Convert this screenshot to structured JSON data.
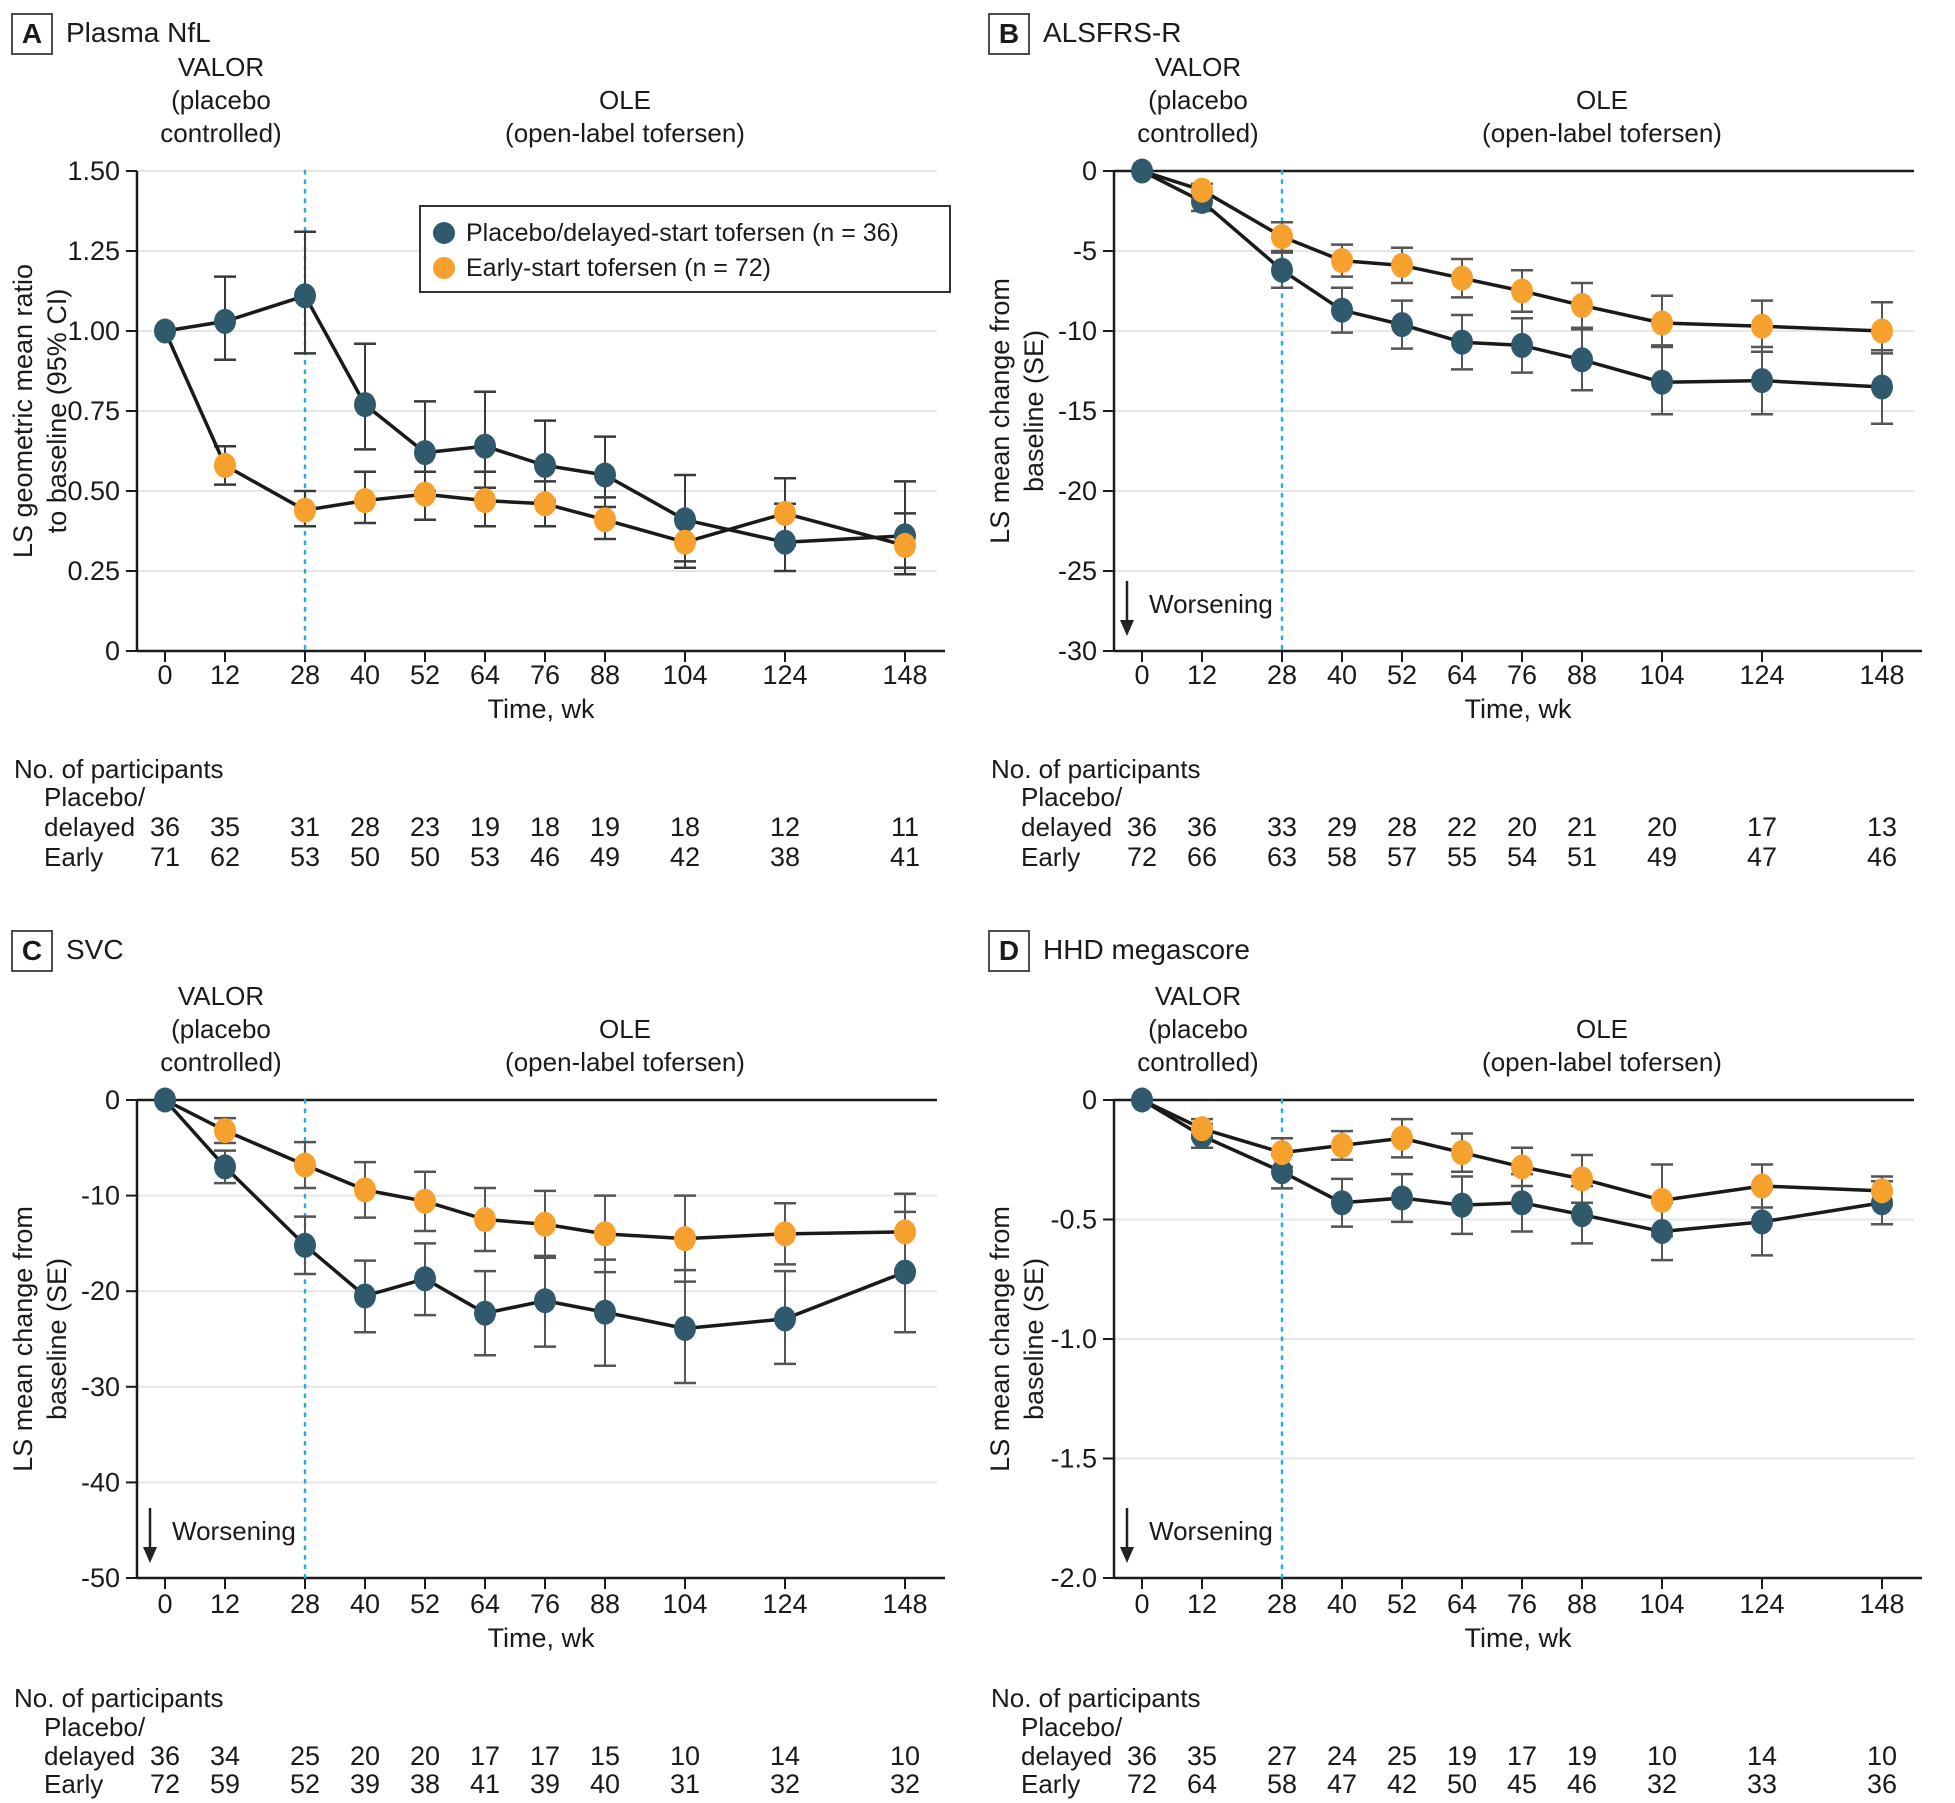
{
  "colors": {
    "placebo_delayed": "#30596b",
    "early": "#f6a12e",
    "phase_text": "#1ba7e2",
    "divider_line": "#29abe2",
    "axis": "#1a1a1a",
    "gridline": "#e6e6e6",
    "error_bar_ci": "#3a3a3a",
    "error_bar_se": "#555555",
    "text": "#1a1a1a"
  },
  "legend": {
    "series1_label": "Placebo/delayed-start tofersen (n = 36)",
    "series2_label": "Early-start tofersen (n = 72)"
  },
  "shared": {
    "x_axis_label": "Time, wk",
    "x_weeks": [
      0,
      12,
      28,
      40,
      52,
      64,
      76,
      88,
      104,
      124,
      148
    ],
    "divider_week": 28,
    "phase_valor_line1": "VALOR",
    "phase_valor_line2": "(placebo",
    "phase_valor_line3": "controlled)",
    "phase_ole_line1": "OLE",
    "phase_ole_line2": "(open-label tofersen)",
    "worsening_label": "Worsening",
    "participants_heading": "No. of participants",
    "participants_row1_line1": "Placebo/",
    "participants_row1_line2": "delayed",
    "participants_row2": "Early"
  },
  "chart_data": [
    {
      "type": "line",
      "panel_letter": "A",
      "title": "Plasma NfL",
      "y_label_lines": [
        "LS geometric mean ratio",
        "to baseline (95% CI)"
      ],
      "y_tick_values": [
        1.5,
        1.25,
        1.0,
        0.75,
        0.5,
        0.25,
        0
      ],
      "y_tick_labels": [
        "1.50",
        "1.25",
        "1.00",
        "0.75",
        "0.50",
        "0.25",
        "0"
      ],
      "ylim": [
        0,
        1.5
      ],
      "x_weeks": [
        0,
        12,
        28,
        40,
        52,
        64,
        76,
        88,
        104,
        124,
        148
      ],
      "series": [
        {
          "key": "placebo_delayed",
          "values": [
            1.0,
            1.03,
            1.11,
            0.77,
            0.62,
            0.64,
            0.58,
            0.55,
            0.41,
            0.34,
            0.36
          ],
          "err_low": [
            1.0,
            0.91,
            0.93,
            0.63,
            0.5,
            0.51,
            0.47,
            0.45,
            0.28,
            0.25,
            0.26
          ],
          "err_high": [
            1.0,
            1.17,
            1.31,
            0.96,
            0.78,
            0.81,
            0.72,
            0.67,
            0.55,
            0.46,
            0.53
          ]
        },
        {
          "key": "early",
          "values": [
            1.0,
            0.58,
            0.44,
            0.47,
            0.49,
            0.47,
            0.46,
            0.41,
            0.34,
            0.43,
            0.33
          ],
          "err_low": [
            1.0,
            0.52,
            0.39,
            0.4,
            0.41,
            0.39,
            0.39,
            0.35,
            0.26,
            0.33,
            0.24
          ],
          "err_high": [
            1.0,
            0.64,
            0.5,
            0.56,
            0.56,
            0.56,
            0.53,
            0.48,
            0.41,
            0.54,
            0.43
          ]
        }
      ],
      "participants": {
        "placebo_delayed": [
          36,
          35,
          31,
          28,
          23,
          19,
          18,
          19,
          18,
          12,
          11
        ],
        "early": [
          71,
          62,
          53,
          50,
          50,
          53,
          46,
          49,
          42,
          38,
          41
        ]
      },
      "show_legend": true,
      "show_worsening": false
    },
    {
      "type": "line",
      "panel_letter": "B",
      "title": "ALSFRS-R",
      "y_label_lines": [
        "LS mean change from",
        "baseline (SE)"
      ],
      "y_tick_values": [
        0,
        -5,
        -10,
        -15,
        -20,
        -25,
        -30
      ],
      "y_tick_labels": [
        "0",
        "-5",
        "-10",
        "-15",
        "-20",
        "-25",
        "-30"
      ],
      "ylim": [
        -30,
        0
      ],
      "x_weeks": [
        0,
        12,
        28,
        40,
        52,
        64,
        76,
        88,
        104,
        124,
        148
      ],
      "series": [
        {
          "key": "placebo_delayed",
          "values": [
            0,
            -1.9,
            -6.2,
            -8.7,
            -9.6,
            -10.7,
            -10.9,
            -11.8,
            -13.2,
            -13.1,
            -13.5
          ],
          "err_low": [
            0,
            -2.5,
            -7.3,
            -10.1,
            -11.1,
            -12.4,
            -12.6,
            -13.7,
            -15.2,
            -15.2,
            -15.8
          ],
          "err_high": [
            0,
            -1.3,
            -5.1,
            -7.3,
            -8.1,
            -9.0,
            -9.2,
            -9.9,
            -10.9,
            -11.0,
            -11.2
          ]
        },
        {
          "key": "early",
          "values": [
            0,
            -1.2,
            -4.1,
            -5.6,
            -5.9,
            -6.7,
            -7.5,
            -8.4,
            -9.5,
            -9.7,
            -10.0
          ],
          "err_low": [
            0,
            -1.6,
            -5.0,
            -6.6,
            -7.0,
            -7.9,
            -8.8,
            -9.8,
            -11.0,
            -11.3,
            -11.4
          ],
          "err_high": [
            0,
            -0.8,
            -3.2,
            -4.6,
            -4.8,
            -5.5,
            -6.2,
            -7.0,
            -7.8,
            -8.1,
            -8.2
          ]
        }
      ],
      "participants": {
        "placebo_delayed": [
          36,
          36,
          33,
          29,
          28,
          22,
          20,
          21,
          20,
          17,
          13
        ],
        "early": [
          72,
          66,
          63,
          58,
          57,
          55,
          54,
          51,
          49,
          47,
          46
        ]
      },
      "show_legend": false,
      "show_worsening": true
    },
    {
      "type": "line",
      "panel_letter": "C",
      "title": "SVC",
      "y_label_lines": [
        "LS mean change from",
        "baseline (SE)"
      ],
      "y_tick_values": [
        0,
        -10,
        -20,
        -30,
        -40,
        -50
      ],
      "y_tick_labels": [
        "0",
        "-10",
        "-20",
        "-30",
        "-40",
        "-50"
      ],
      "ylim": [
        -50,
        0
      ],
      "x_weeks": [
        0,
        12,
        28,
        40,
        52,
        64,
        76,
        88,
        104,
        124,
        148
      ],
      "series": [
        {
          "key": "placebo_delayed",
          "values": [
            0,
            -7.0,
            -15.2,
            -20.5,
            -18.7,
            -22.3,
            -21.0,
            -22.2,
            -23.9,
            -22.9,
            -18.0
          ],
          "err_low": [
            0,
            -8.7,
            -18.2,
            -24.3,
            -22.5,
            -26.7,
            -25.8,
            -27.8,
            -29.6,
            -27.6,
            -24.3
          ],
          "err_high": [
            0,
            -5.3,
            -12.2,
            -16.8,
            -15.0,
            -17.9,
            -16.3,
            -16.7,
            -17.8,
            -17.9,
            -11.7
          ]
        },
        {
          "key": "early",
          "values": [
            0,
            -3.2,
            -6.8,
            -9.4,
            -10.6,
            -12.5,
            -13.0,
            -14.0,
            -14.5,
            -14.0,
            -13.8
          ],
          "err_low": [
            0,
            -4.5,
            -9.2,
            -12.3,
            -13.7,
            -15.8,
            -16.5,
            -18.0,
            -19.0,
            -17.2,
            -17.8
          ],
          "err_high": [
            0,
            -1.9,
            -4.4,
            -6.5,
            -7.5,
            -9.2,
            -9.5,
            -10.0,
            -10.0,
            -10.8,
            -9.8
          ]
        }
      ],
      "participants": {
        "placebo_delayed": [
          36,
          34,
          25,
          20,
          20,
          17,
          17,
          15,
          10,
          14,
          10
        ],
        "early": [
          72,
          59,
          52,
          39,
          38,
          41,
          39,
          40,
          31,
          32,
          32
        ]
      },
      "show_legend": false,
      "show_worsening": true
    },
    {
      "type": "line",
      "panel_letter": "D",
      "title": "HHD megascore",
      "y_label_lines": [
        "LS mean change from",
        "baseline (SE)"
      ],
      "y_tick_values": [
        0,
        -0.5,
        -1.0,
        -1.5,
        -2.0
      ],
      "y_tick_labels": [
        "0",
        "-0.5",
        "-1.0",
        "-1.5",
        "-2.0"
      ],
      "ylim": [
        -2.0,
        0
      ],
      "x_weeks": [
        0,
        12,
        28,
        40,
        52,
        64,
        76,
        88,
        104,
        124,
        148
      ],
      "series": [
        {
          "key": "placebo_delayed",
          "values": [
            0,
            -0.15,
            -0.3,
            -0.43,
            -0.41,
            -0.44,
            -0.43,
            -0.48,
            -0.55,
            -0.51,
            -0.43
          ],
          "err_low": [
            0,
            -0.2,
            -0.37,
            -0.53,
            -0.51,
            -0.56,
            -0.55,
            -0.6,
            -0.67,
            -0.65,
            -0.52
          ],
          "err_high": [
            0,
            -0.1,
            -0.23,
            -0.33,
            -0.31,
            -0.32,
            -0.31,
            -0.36,
            -0.43,
            -0.37,
            -0.34
          ]
        },
        {
          "key": "early",
          "values": [
            0,
            -0.12,
            -0.22,
            -0.19,
            -0.16,
            -0.22,
            -0.28,
            -0.33,
            -0.42,
            -0.36,
            -0.38
          ],
          "err_low": [
            0,
            -0.16,
            -0.28,
            -0.25,
            -0.24,
            -0.3,
            -0.36,
            -0.43,
            -0.57,
            -0.45,
            -0.44
          ],
          "err_high": [
            0,
            -0.08,
            -0.16,
            -0.13,
            -0.08,
            -0.14,
            -0.2,
            -0.23,
            -0.27,
            -0.27,
            -0.32
          ]
        }
      ],
      "participants": {
        "placebo_delayed": [
          36,
          35,
          27,
          24,
          25,
          19,
          17,
          19,
          10,
          14,
          10
        ],
        "early": [
          72,
          64,
          58,
          47,
          42,
          50,
          45,
          46,
          32,
          33,
          36
        ]
      },
      "show_legend": false,
      "show_worsening": true
    }
  ]
}
